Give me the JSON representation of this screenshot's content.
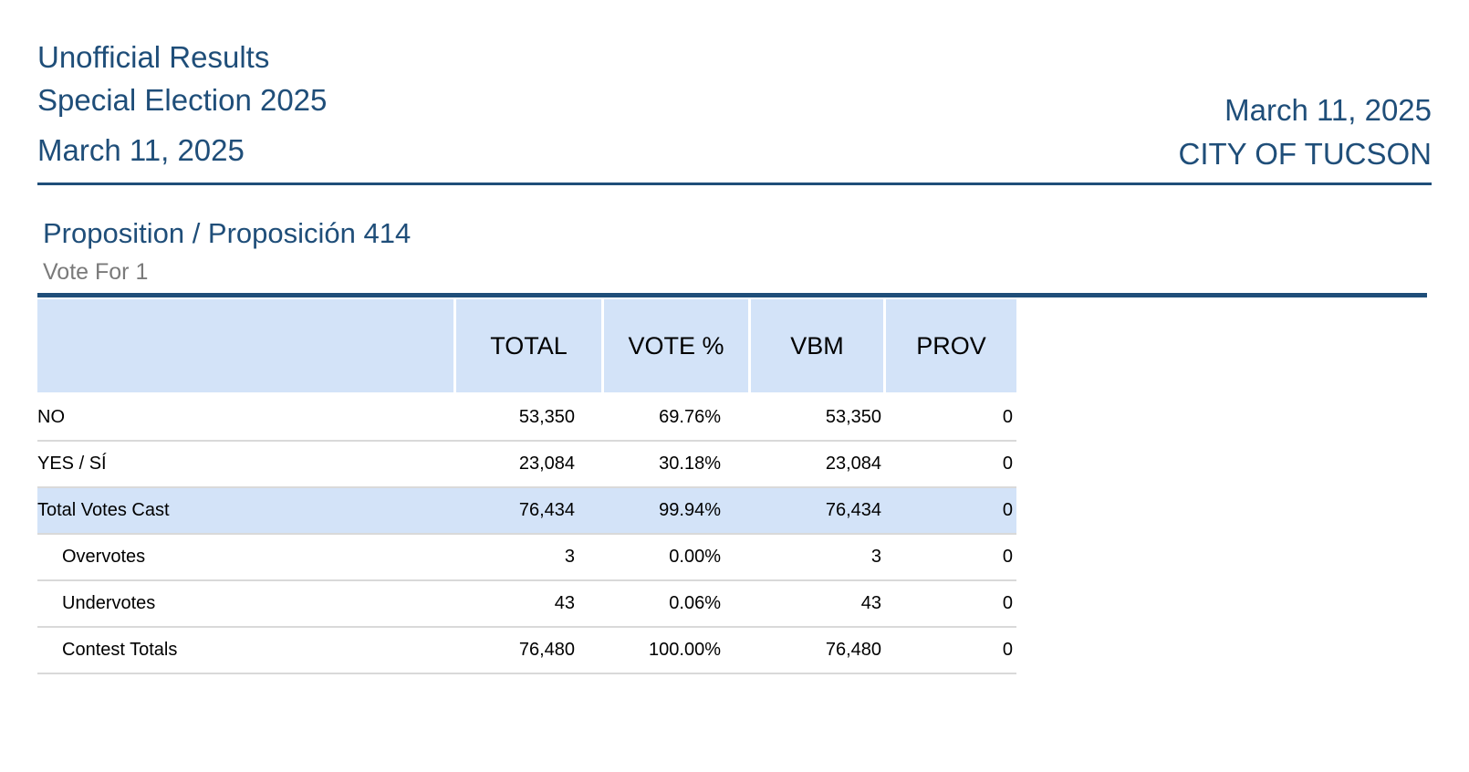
{
  "header": {
    "left_lines": [
      "Unofficial Results",
      "Special Election 2025",
      "March 11, 2025"
    ],
    "right_lines": [
      "March 11, 2025",
      "CITY OF TUCSON"
    ]
  },
  "contest": {
    "title": "Proposition / Proposición 414",
    "vote_for": "Vote For 1"
  },
  "table": {
    "columns": [
      "",
      "TOTAL",
      "VOTE %",
      "VBM",
      "PROV"
    ],
    "rows": [
      {
        "name": "NO",
        "total": "53,350",
        "pct": "69.76%",
        "vbm": "53,350",
        "prov": "0"
      },
      {
        "name": "YES / SÍ",
        "total": "23,084",
        "pct": "30.18%",
        "vbm": "23,084",
        "prov": "0"
      },
      {
        "name": "Total Votes Cast",
        "total": "76,434",
        "pct": "99.94%",
        "vbm": "76,434",
        "prov": "0"
      },
      {
        "name": "Overvotes",
        "total": "3",
        "pct": "0.00%",
        "vbm": "3",
        "prov": "0"
      },
      {
        "name": "Undervotes",
        "total": "43",
        "pct": "0.06%",
        "vbm": "43",
        "prov": "0"
      },
      {
        "name": "Contest Totals",
        "total": "76,480",
        "pct": "100.00%",
        "vbm": "76,480",
        "prov": "0"
      }
    ]
  },
  "colors": {
    "accent": "#1f4e79",
    "header_fill": "#d3e3f8",
    "muted_text": "#7a7a7a",
    "row_rule": "#d9d9d9"
  }
}
